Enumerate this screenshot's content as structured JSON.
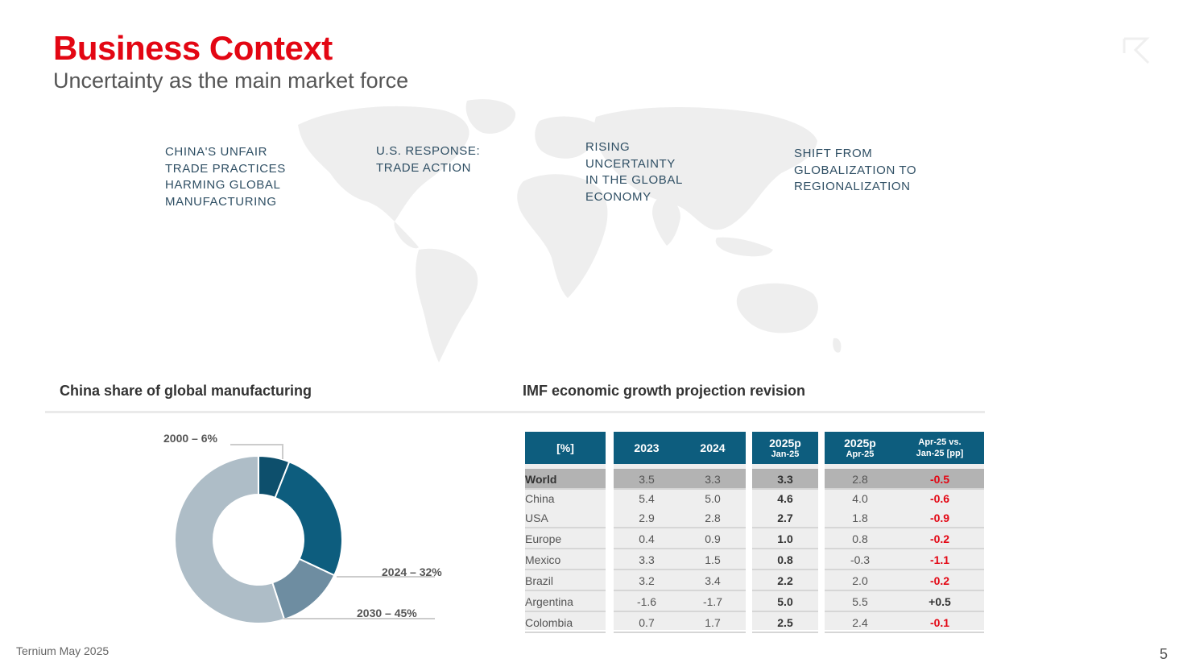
{
  "header": {
    "title": "Business Context",
    "subtitle": "Uncertainty as the main market force"
  },
  "themes": [
    "CHINA'S UNFAIR\nTRADE PRACTICES\nHARMING GLOBAL\nMANUFACTURING",
    "U.S. RESPONSE:\nTRADE ACTION",
    "RISING\nUNCERTAINTY\nIN THE GLOBAL\nECONOMY",
    "SHIFT FROM\nGLOBALIZATION TO\nREGIONALIZATION"
  ],
  "sections": {
    "china_title": "China share of global manufacturing",
    "imf_title": "IMF economic growth projection revision"
  },
  "chart_data": {
    "type": "pie",
    "title": "China share of global manufacturing",
    "style": "donut",
    "categories": [
      "2000",
      "2024",
      "2030"
    ],
    "values": [
      6,
      32,
      45
    ],
    "labels": [
      "2000 – 6%",
      "2024 – 32%",
      "2030 – 45%"
    ],
    "colors": [
      "#0d4f6c",
      "#0d5d7e",
      "#6e8da1"
    ],
    "remainder_color": "#aebdc7"
  },
  "imf_table": {
    "headers": [
      {
        "big": "[%]",
        "small": ""
      },
      {
        "big": "2023",
        "small": ""
      },
      {
        "big": "2024",
        "small": ""
      },
      {
        "big": "2025p",
        "small": "Jan-25"
      },
      {
        "big": "2025p",
        "small": "Apr-25"
      },
      {
        "big": "Apr-25 vs.\nJan-25 [pp]",
        "small": ""
      }
    ],
    "rows": [
      {
        "label": "World",
        "y2023": "3.5",
        "y2024": "3.3",
        "jan25": "3.3",
        "apr25": "2.8",
        "diff": "-0.5"
      },
      {
        "label": "China",
        "y2023": "5.4",
        "y2024": "5.0",
        "jan25": "4.6",
        "apr25": "4.0",
        "diff": "-0.6"
      },
      {
        "label": "USA",
        "y2023": "2.9",
        "y2024": "2.8",
        "jan25": "2.7",
        "apr25": "1.8",
        "diff": "-0.9"
      },
      {
        "label": "Europe",
        "y2023": "0.4",
        "y2024": "0.9",
        "jan25": "1.0",
        "apr25": "0.8",
        "diff": "-0.2"
      },
      {
        "label": "Mexico",
        "y2023": "3.3",
        "y2024": "1.5",
        "jan25": "0.8",
        "apr25": "-0.3",
        "diff": "-1.1"
      },
      {
        "label": "Brazil",
        "y2023": "3.2",
        "y2024": "3.4",
        "jan25": "2.2",
        "apr25": "2.0",
        "diff": "-0.2"
      },
      {
        "label": "Argentina",
        "y2023": "-1.6",
        "y2024": "-1.7",
        "jan25": "5.0",
        "apr25": "5.5",
        "diff": "+0.5"
      },
      {
        "label": "Colombia",
        "y2023": "0.7",
        "y2024": "1.7",
        "jan25": "2.5",
        "apr25": "2.4",
        "diff": "-0.1"
      }
    ]
  },
  "footer": {
    "source": "Ternium May 2025",
    "page": "5"
  },
  "colors": {
    "accent": "#e30613",
    "header_blue": "#0d5d7e",
    "text_blue": "#2f4f64"
  }
}
